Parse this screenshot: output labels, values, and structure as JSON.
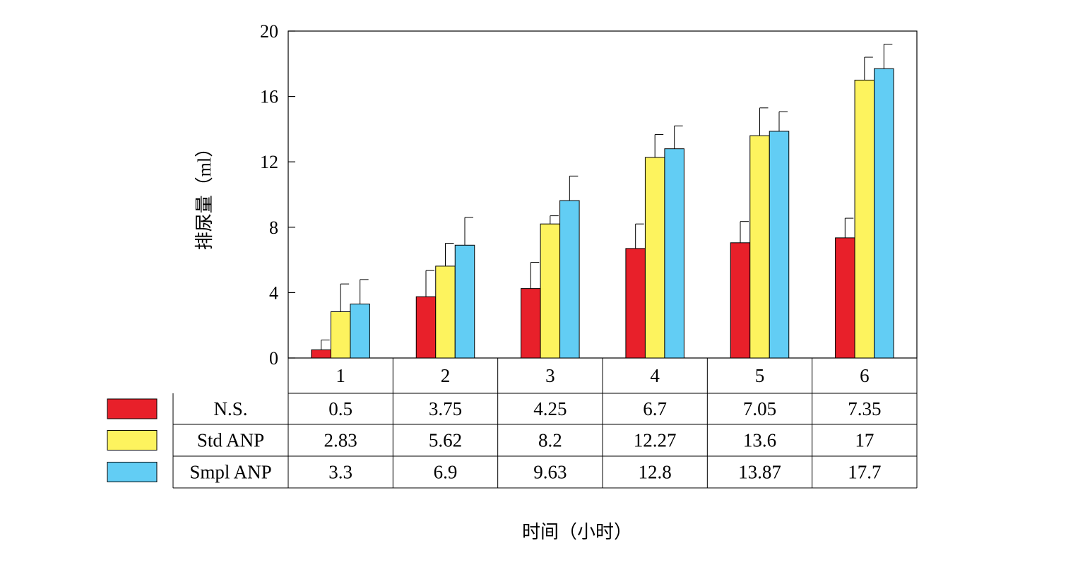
{
  "chart_data": {
    "type": "bar",
    "categories": [
      "1",
      "2",
      "3",
      "4",
      "5",
      "6"
    ],
    "series": [
      {
        "name": "N.S.",
        "color": "#e8202a",
        "values": [
          0.5,
          3.75,
          4.25,
          6.7,
          7.05,
          7.35
        ],
        "labels": [
          "0.5",
          "3.75",
          "4.25",
          "6.7",
          "7.05",
          "7.35"
        ],
        "err_plus": [
          0.6,
          1.6,
          1.6,
          1.5,
          1.3,
          1.2
        ]
      },
      {
        "name": "Std ANP",
        "color": "#fdf35e",
        "values": [
          2.83,
          5.62,
          8.2,
          12.27,
          13.6,
          17
        ],
        "labels": [
          "2.83",
          "5.62",
          "8.2",
          "12.27",
          "13.6",
          "17"
        ],
        "err_plus": [
          1.7,
          1.4,
          0.5,
          1.4,
          1.7,
          1.4
        ]
      },
      {
        "name": "Smpl ANP",
        "color": "#62cdf4",
        "values": [
          3.3,
          6.9,
          9.63,
          12.8,
          13.87,
          17.7
        ],
        "labels": [
          "3.3",
          "6.9",
          "9.63",
          "12.8",
          "13.87",
          "17.7"
        ],
        "err_plus": [
          1.5,
          1.7,
          1.5,
          1.4,
          1.2,
          1.5
        ]
      }
    ],
    "ylabel": "排尿量（ml）",
    "xlabel": "时间（小时）",
    "ylim": [
      0,
      20
    ],
    "yticks": [
      0,
      4,
      8,
      12,
      16,
      20
    ],
    "ytick_labels": [
      "0",
      "4",
      "8",
      "12",
      "16",
      "20"
    ],
    "legend": "table-left",
    "grid": false
  }
}
